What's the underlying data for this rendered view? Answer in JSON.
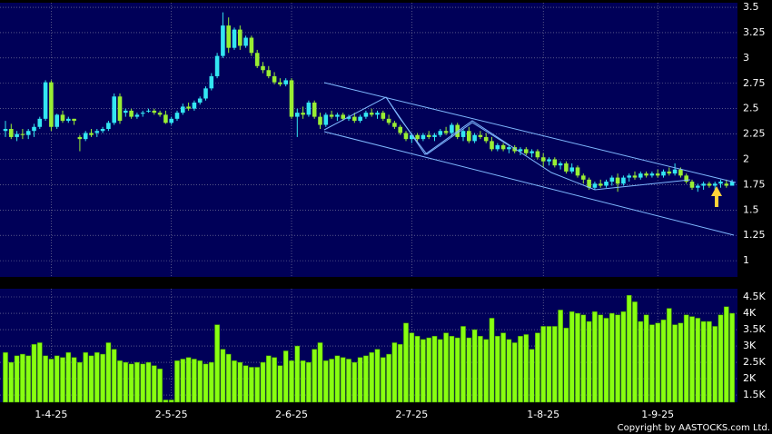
{
  "chart_data": [
    {
      "type": "candlestick",
      "categories": [
        null,
        null,
        null,
        null,
        null,
        null,
        null,
        null,
        "1-4-25",
        null,
        null,
        null,
        null,
        null,
        null,
        null,
        null,
        null,
        null,
        null,
        null,
        null,
        null,
        null,
        null,
        null,
        null,
        null,
        null,
        "2-5-25",
        null,
        null,
        null,
        null,
        null,
        null,
        null,
        null,
        null,
        null,
        null,
        null,
        null,
        null,
        null,
        null,
        null,
        null,
        null,
        null,
        "2-6-25",
        null,
        null,
        null,
        null,
        null,
        null,
        null,
        null,
        null,
        null,
        null,
        null,
        null,
        null,
        null,
        null,
        null,
        null,
        null,
        null,
        "2-7-25",
        null,
        null,
        null,
        null,
        null,
        null,
        null,
        null,
        null,
        null,
        null,
        null,
        null,
        null,
        null,
        null,
        null,
        null,
        null,
        null,
        null,
        null,
        "1-8-25",
        null,
        null,
        null,
        null,
        null,
        null,
        null,
        null,
        null,
        null,
        null,
        null,
        null,
        null,
        null,
        null,
        null,
        null,
        null,
        "1-9-25",
        null,
        null,
        null,
        null,
        null,
        null,
        null,
        null,
        null,
        null,
        null,
        null,
        null
      ],
      "open": [
        2.28,
        2.3,
        2.22,
        2.25,
        2.24,
        2.28,
        2.32,
        2.4,
        2.76,
        2.32,
        2.44,
        2.38,
        2.4,
        2.22,
        2.2,
        2.26,
        2.26,
        2.28,
        2.3,
        2.36,
        2.62,
        2.46,
        2.48,
        2.42,
        2.45,
        2.48,
        2.48,
        2.46,
        2.44,
        2.36,
        2.4,
        2.46,
        2.52,
        2.5,
        2.56,
        2.6,
        2.7,
        2.82,
        3.02,
        3.32,
        3.1,
        3.28,
        3.12,
        3.2,
        3.05,
        2.92,
        2.88,
        2.82,
        2.76,
        2.74,
        2.78,
        2.42,
        2.46,
        2.44,
        2.56,
        2.42,
        2.34,
        2.44,
        2.42,
        2.44,
        2.4,
        2.42,
        2.38,
        2.42,
        2.46,
        2.44,
        2.46,
        2.4,
        2.36,
        2.32,
        2.26,
        2.2,
        2.24,
        2.2,
        2.24,
        2.22,
        2.24,
        2.28,
        2.26,
        2.34,
        2.22,
        2.28,
        2.18,
        2.24,
        2.22,
        2.18,
        2.1,
        2.14,
        2.1,
        2.12,
        2.08,
        2.1,
        2.06,
        2.08,
        2.02,
        1.98,
        2.0,
        1.94,
        1.96,
        1.88,
        1.92,
        1.84,
        1.8,
        1.72,
        1.76,
        1.74,
        1.78,
        1.82,
        1.76,
        1.82,
        1.84,
        1.82,
        1.86,
        1.84,
        1.86,
        1.84,
        1.88,
        1.86,
        1.9,
        1.84,
        1.78,
        1.72,
        1.74,
        1.76,
        1.74,
        1.76,
        1.76,
        1.74
      ],
      "high": [
        2.38,
        2.35,
        2.28,
        2.3,
        2.3,
        2.35,
        2.42,
        2.78,
        2.78,
        2.45,
        2.48,
        2.42,
        2.4,
        2.24,
        2.28,
        2.3,
        2.3,
        2.32,
        2.38,
        2.65,
        2.65,
        2.5,
        2.5,
        2.46,
        2.48,
        2.5,
        2.5,
        2.48,
        2.48,
        2.42,
        2.48,
        2.55,
        2.56,
        2.58,
        2.62,
        2.72,
        2.85,
        3.05,
        3.45,
        3.4,
        3.3,
        3.32,
        3.22,
        3.22,
        3.08,
        2.96,
        2.92,
        2.86,
        2.8,
        2.8,
        2.8,
        2.5,
        2.52,
        2.58,
        2.58,
        2.46,
        2.46,
        2.48,
        2.46,
        2.46,
        2.44,
        2.46,
        2.44,
        2.48,
        2.5,
        2.48,
        2.48,
        2.44,
        2.38,
        2.34,
        2.28,
        2.26,
        2.26,
        2.26,
        2.28,
        2.26,
        2.3,
        2.32,
        2.36,
        2.36,
        2.3,
        2.32,
        2.26,
        2.28,
        2.26,
        2.22,
        2.16,
        2.16,
        2.14,
        2.14,
        2.12,
        2.12,
        2.1,
        2.1,
        2.06,
        2.02,
        2.02,
        1.98,
        1.98,
        1.96,
        1.94,
        1.86,
        1.82,
        1.78,
        1.8,
        1.8,
        1.84,
        1.86,
        1.84,
        1.86,
        1.88,
        1.88,
        1.88,
        1.88,
        1.9,
        1.9,
        1.92,
        1.96,
        1.92,
        1.86,
        1.8,
        1.76,
        1.78,
        1.78,
        1.78,
        1.8,
        1.8,
        1.8
      ],
      "low": [
        2.22,
        2.2,
        2.18,
        2.2,
        2.2,
        2.22,
        2.3,
        2.38,
        2.28,
        2.3,
        2.36,
        2.36,
        2.34,
        2.08,
        2.18,
        2.22,
        2.22,
        2.26,
        2.28,
        2.34,
        2.35,
        2.42,
        2.4,
        2.4,
        2.42,
        2.46,
        2.44,
        2.42,
        2.35,
        2.34,
        2.38,
        2.44,
        2.48,
        2.48,
        2.54,
        2.58,
        2.68,
        2.8,
        3.0,
        3.05,
        3.08,
        3.08,
        3.1,
        3.02,
        2.9,
        2.85,
        2.8,
        2.74,
        2.72,
        2.72,
        2.4,
        2.22,
        2.4,
        2.42,
        2.4,
        2.3,
        2.32,
        2.4,
        2.38,
        2.38,
        2.38,
        2.36,
        2.36,
        2.4,
        2.42,
        2.4,
        2.38,
        2.34,
        2.3,
        2.24,
        2.18,
        2.16,
        2.18,
        2.18,
        2.2,
        2.18,
        2.22,
        2.24,
        2.22,
        2.2,
        2.18,
        2.16,
        2.16,
        2.2,
        2.16,
        2.08,
        2.08,
        2.08,
        2.06,
        2.06,
        2.04,
        2.04,
        2.02,
        2.0,
        1.92,
        1.94,
        1.92,
        1.9,
        1.86,
        1.86,
        1.82,
        1.76,
        1.7,
        1.7,
        1.72,
        1.72,
        1.74,
        1.68,
        1.74,
        1.78,
        1.8,
        1.8,
        1.82,
        1.82,
        1.82,
        1.82,
        1.84,
        1.84,
        1.82,
        1.76,
        1.7,
        1.68,
        1.7,
        1.72,
        1.7,
        1.72,
        1.72,
        1.74
      ],
      "close": [
        2.3,
        2.22,
        2.25,
        2.24,
        2.28,
        2.32,
        2.4,
        2.76,
        2.32,
        2.44,
        2.38,
        2.4,
        2.38,
        2.2,
        2.26,
        2.24,
        2.28,
        2.3,
        2.36,
        2.62,
        2.38,
        2.48,
        2.42,
        2.44,
        2.46,
        2.48,
        2.46,
        2.44,
        2.36,
        2.4,
        2.46,
        2.52,
        2.5,
        2.56,
        2.6,
        2.7,
        2.82,
        3.02,
        3.32,
        3.1,
        3.28,
        3.12,
        3.2,
        3.05,
        2.92,
        2.88,
        2.82,
        2.76,
        2.74,
        2.78,
        2.42,
        2.46,
        2.44,
        2.56,
        2.42,
        2.34,
        2.44,
        2.42,
        2.44,
        2.4,
        2.42,
        2.38,
        2.42,
        2.46,
        2.44,
        2.46,
        2.4,
        2.36,
        2.32,
        2.26,
        2.2,
        2.24,
        2.2,
        2.24,
        2.22,
        2.24,
        2.28,
        2.26,
        2.34,
        2.22,
        2.28,
        2.18,
        2.24,
        2.22,
        2.18,
        2.1,
        2.14,
        2.1,
        2.12,
        2.08,
        2.1,
        2.06,
        2.08,
        2.02,
        1.98,
        2.0,
        1.94,
        1.96,
        1.88,
        1.92,
        1.84,
        1.8,
        1.72,
        1.76,
        1.74,
        1.78,
        1.82,
        1.76,
        1.82,
        1.84,
        1.82,
        1.86,
        1.84,
        1.86,
        1.84,
        1.88,
        1.86,
        1.9,
        1.84,
        1.78,
        1.72,
        1.74,
        1.76,
        1.74,
        1.76,
        1.78,
        1.74,
        1.78
      ],
      "up_color": "#33e6f2",
      "down_color": "#99ee33",
      "ylim": [
        0.84,
        3.545
      ],
      "yticks": [
        1,
        1.25,
        1.5,
        1.75,
        2,
        2.25,
        2.5,
        2.75,
        3,
        3.25,
        3.5
      ],
      "grid": true
    },
    {
      "type": "bar",
      "color": "#88ff11",
      "values": [
        2800,
        2500,
        2700,
        2750,
        2700,
        3050,
        3100,
        2700,
        2600,
        2700,
        2650,
        2800,
        2650,
        2500,
        2800,
        2700,
        2800,
        2750,
        3100,
        2900,
        2550,
        2500,
        2450,
        2500,
        2450,
        2500,
        2400,
        2300,
        1350,
        1350,
        2550,
        2600,
        2650,
        2600,
        2550,
        2450,
        2500,
        3650,
        2900,
        2750,
        2550,
        2500,
        2400,
        2350,
        2350,
        2500,
        2700,
        2650,
        2400,
        2850,
        2550,
        3000,
        2550,
        2500,
        2900,
        3100,
        2550,
        2600,
        2700,
        2650,
        2600,
        2500,
        2650,
        2700,
        2800,
        2900,
        2650,
        2750,
        3100,
        3050,
        3700,
        3400,
        3300,
        3200,
        3250,
        3300,
        3200,
        3400,
        3300,
        3250,
        3600,
        3250,
        3500,
        3300,
        3200,
        3850,
        3300,
        3400,
        3200,
        3100,
        3300,
        3350,
        2900,
        3400,
        3600,
        3600,
        3600,
        4100,
        3550,
        4050,
        4000,
        3950,
        3750,
        4050,
        3950,
        3850,
        4000,
        3950,
        4050,
        4550,
        4350,
        3750,
        3950,
        3650,
        3700,
        3800,
        4150,
        3650,
        3700,
        3950,
        3900,
        3850,
        3750,
        3750,
        3600,
        3950,
        4200,
        4000
      ],
      "ylim": [
        1280,
        4750
      ],
      "yticks": [
        {
          "value": 1500,
          "label": "1.5K"
        },
        {
          "value": 2000,
          "label": "2K"
        },
        {
          "value": 2500,
          "label": "2.5K"
        },
        {
          "value": 3000,
          "label": "3K"
        },
        {
          "value": 3500,
          "label": "3.5K"
        },
        {
          "value": 4000,
          "label": "4K"
        },
        {
          "value": 4500,
          "label": "4.5K"
        }
      ],
      "grid": true
    }
  ],
  "copyright": "Copyright by AASTOCKS.com Ltd."
}
